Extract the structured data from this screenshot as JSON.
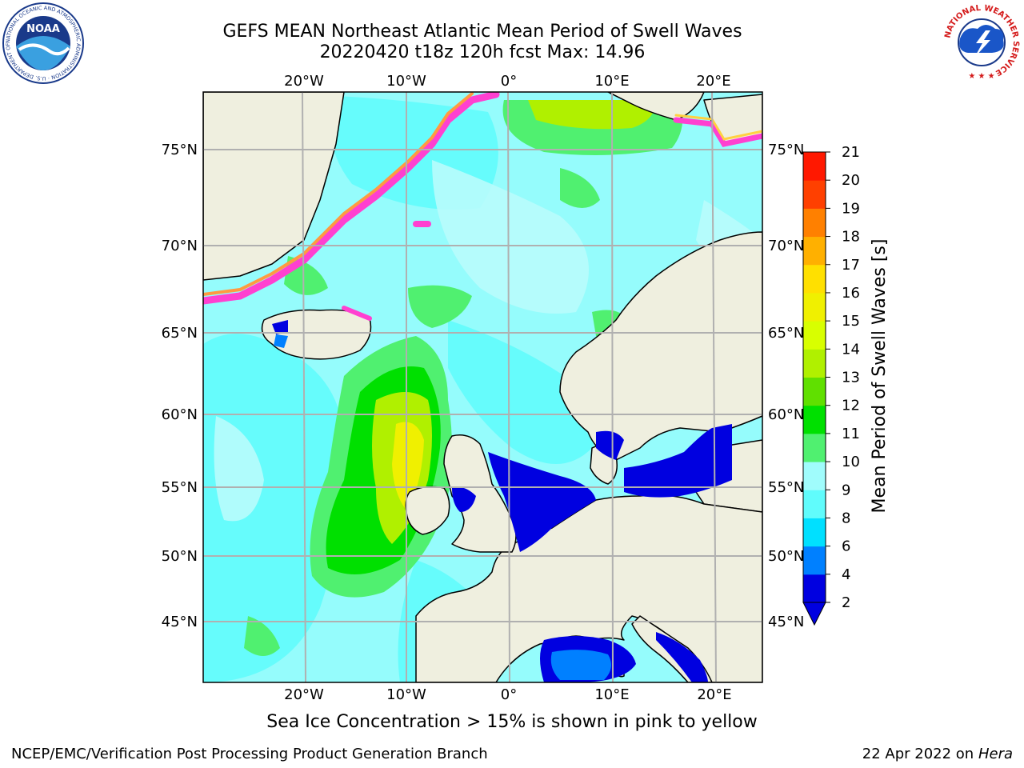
{
  "header": {
    "title_line1": "GEFS MEAN Northeast Atlantic Mean Period of Swell Waves",
    "title_line2": "20220420 t18z 120h fcst   Max: 14.96"
  },
  "logos": {
    "noaa_text": "NOAA",
    "noaa_ring_text": "NATIONAL OCEANIC AND ATMOSPHERIC ADMINISTRATION · U.S. DEPARTMENT OF COMMERCE",
    "nws_ring_text": "NATIONAL WEATHER SERVICE"
  },
  "map": {
    "lon_labels": [
      "20°W",
      "10°W",
      "0°",
      "10°E",
      "20°E"
    ],
    "lat_labels": [
      "75°N",
      "70°N",
      "65°N",
      "60°N",
      "55°N",
      "50°N",
      "45°N"
    ],
    "colors": {
      "ocean": "#95fcfc",
      "land": "#efefdf",
      "ice": "#ffffff",
      "grid": "#b0b0b0"
    }
  },
  "colorbar": {
    "label": "Mean Period of Swell Waves [s]",
    "ticks": [
      "2",
      "4",
      "6",
      "8",
      "9",
      "10",
      "11",
      "12",
      "13",
      "14",
      "15",
      "16",
      "17",
      "18",
      "19",
      "20",
      "21"
    ],
    "colors": [
      "#0000e0",
      "#0080ff",
      "#00e0ff",
      "#60fcfc",
      "#a0fcfc",
      "#50f070",
      "#00e000",
      "#60e000",
      "#b0f000",
      "#d8ff00",
      "#f0f000",
      "#ffe000",
      "#ffb000",
      "#ff8000",
      "#ff4000",
      "#ff1800"
    ],
    "extend_color": "#0000e0"
  },
  "footer": {
    "note": "Sea Ice Concentration > 15% is shown in pink to yellow",
    "credit_left": "NCEP/EMC/Verification Post Processing Product Generation Branch",
    "date": "22 Apr 2022 on",
    "host": "Hera"
  }
}
